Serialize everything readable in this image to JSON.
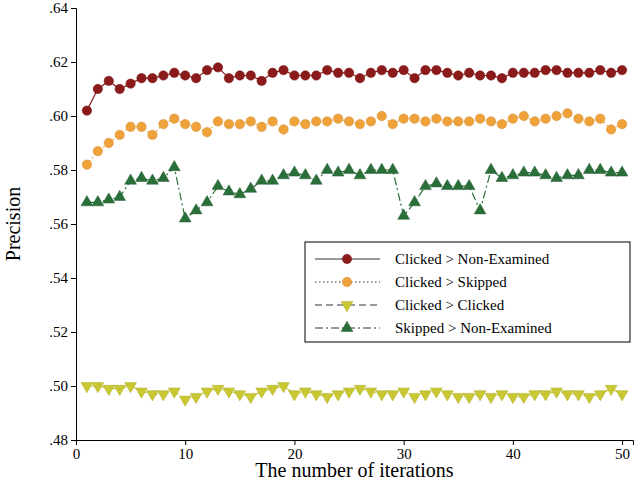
{
  "chart_data": {
    "type": "line",
    "x_label": "The number of iterations",
    "y_label": "Precision",
    "x": [
      1,
      2,
      3,
      4,
      5,
      6,
      7,
      8,
      9,
      10,
      11,
      12,
      13,
      14,
      15,
      16,
      17,
      18,
      19,
      20,
      21,
      22,
      23,
      24,
      25,
      26,
      27,
      28,
      29,
      30,
      31,
      32,
      33,
      34,
      35,
      36,
      37,
      38,
      39,
      40,
      41,
      42,
      43,
      44,
      45,
      46,
      47,
      48,
      49,
      50
    ],
    "xlim": [
      0,
      51
    ],
    "xticks": [
      0,
      10,
      20,
      30,
      40,
      50
    ],
    "ylim": [
      0.48,
      0.64
    ],
    "yticks": [
      {
        "value": 0.48,
        "label": ".48"
      },
      {
        "value": 0.5,
        "label": ".50"
      },
      {
        "value": 0.52,
        "label": ".52"
      },
      {
        "value": 0.54,
        "label": ".54"
      },
      {
        "value": 0.56,
        "label": ".56"
      },
      {
        "value": 0.58,
        "label": ".58"
      },
      {
        "value": 0.6,
        "label": ".60"
      },
      {
        "value": 0.62,
        "label": ".62"
      },
      {
        "value": 0.64,
        "label": ".64"
      }
    ],
    "grid": false,
    "legend": "right",
    "series": [
      {
        "name": "Clicked > Non-Examined",
        "color": "#8b1a1a",
        "marker": "circle",
        "line_style": "solid",
        "values": [
          0.602,
          0.61,
          0.613,
          0.61,
          0.612,
          0.614,
          0.614,
          0.615,
          0.616,
          0.615,
          0.614,
          0.617,
          0.618,
          0.614,
          0.615,
          0.615,
          0.613,
          0.616,
          0.617,
          0.615,
          0.615,
          0.615,
          0.617,
          0.616,
          0.616,
          0.614,
          0.616,
          0.617,
          0.616,
          0.617,
          0.614,
          0.617,
          0.617,
          0.616,
          0.615,
          0.616,
          0.615,
          0.615,
          0.614,
          0.616,
          0.616,
          0.616,
          0.617,
          0.617,
          0.616,
          0.616,
          0.616,
          0.617,
          0.616,
          0.617
        ]
      },
      {
        "name": "Clicked > Skipped",
        "color": "#f0a23a",
        "marker": "circle",
        "line_style": "dotted",
        "values": [
          0.582,
          0.587,
          0.59,
          0.593,
          0.596,
          0.596,
          0.593,
          0.597,
          0.599,
          0.597,
          0.596,
          0.594,
          0.598,
          0.597,
          0.597,
          0.598,
          0.596,
          0.598,
          0.595,
          0.598,
          0.597,
          0.598,
          0.598,
          0.599,
          0.598,
          0.597,
          0.598,
          0.6,
          0.597,
          0.599,
          0.599,
          0.598,
          0.599,
          0.598,
          0.598,
          0.598,
          0.599,
          0.598,
          0.597,
          0.599,
          0.6,
          0.598,
          0.599,
          0.6,
          0.601,
          0.599,
          0.598,
          0.599,
          0.595,
          0.597
        ]
      },
      {
        "name": "Clicked > Clicked",
        "color": "#c9c832",
        "marker": "triangle-down",
        "line_style": "dashed",
        "values": [
          0.5,
          0.5,
          0.499,
          0.499,
          0.5,
          0.498,
          0.497,
          0.497,
          0.498,
          0.495,
          0.496,
          0.498,
          0.499,
          0.498,
          0.497,
          0.496,
          0.498,
          0.499,
          0.5,
          0.497,
          0.498,
          0.497,
          0.496,
          0.497,
          0.498,
          0.499,
          0.498,
          0.497,
          0.497,
          0.498,
          0.496,
          0.497,
          0.498,
          0.497,
          0.496,
          0.496,
          0.497,
          0.496,
          0.497,
          0.496,
          0.496,
          0.497,
          0.497,
          0.498,
          0.497,
          0.497,
          0.496,
          0.497,
          0.499,
          0.497
        ]
      },
      {
        "name": "Skipped > Non-Examined",
        "color": "#2a6e3a",
        "marker": "triangle-up",
        "line_style": "dash-dot",
        "values": [
          0.568,
          0.568,
          0.569,
          0.57,
          0.576,
          0.577,
          0.576,
          0.577,
          0.581,
          0.562,
          0.565,
          0.568,
          0.574,
          0.572,
          0.571,
          0.573,
          0.576,
          0.576,
          0.578,
          0.579,
          0.578,
          0.576,
          0.58,
          0.579,
          0.58,
          0.578,
          0.58,
          0.58,
          0.58,
          0.563,
          0.568,
          0.574,
          0.575,
          0.574,
          0.574,
          0.574,
          0.565,
          0.58,
          0.577,
          0.578,
          0.579,
          0.579,
          0.578,
          0.577,
          0.578,
          0.578,
          0.58,
          0.58,
          0.579,
          0.579
        ]
      }
    ]
  }
}
